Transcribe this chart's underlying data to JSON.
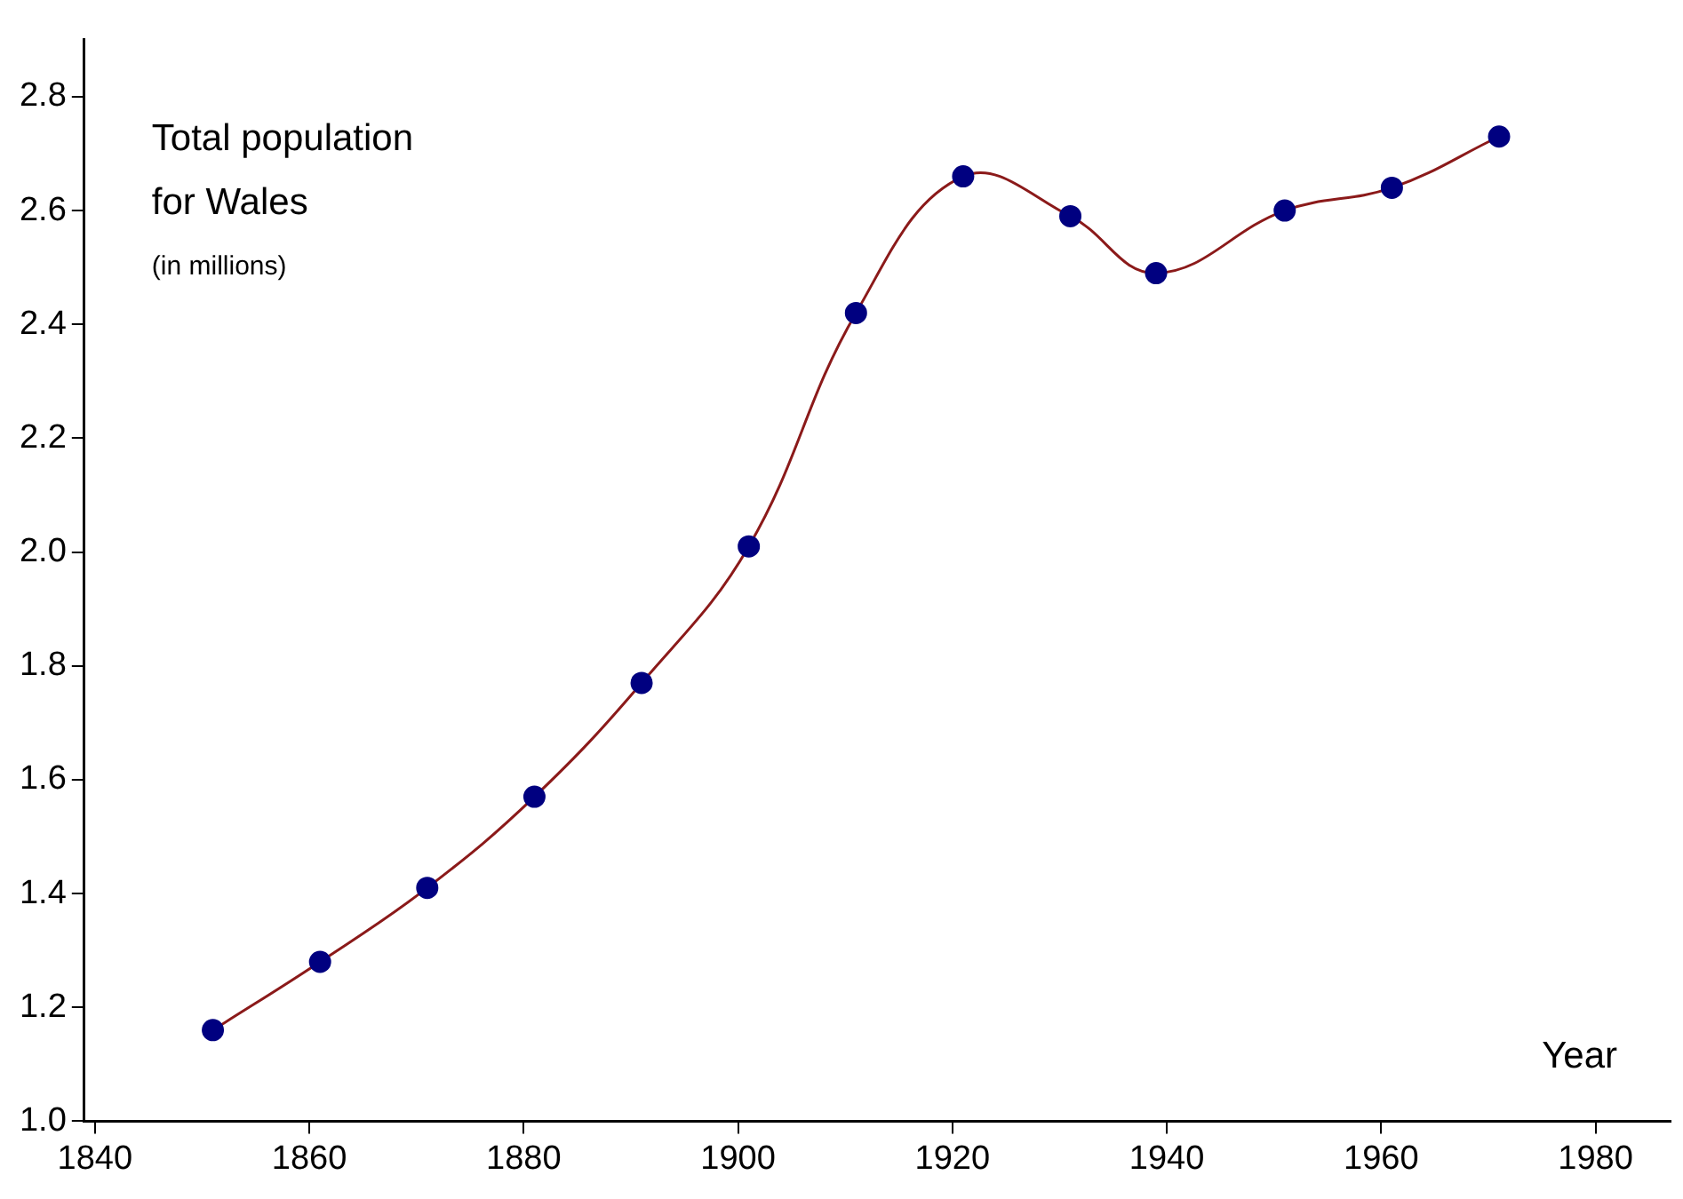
{
  "chart_data": {
    "type": "line",
    "title": "Total population for Wales",
    "subtitle": "(in millions)",
    "xlabel": "Year",
    "x": [
      1851,
      1861,
      1871,
      1881,
      1891,
      1901,
      1911,
      1921,
      1931,
      1939,
      1951,
      1961,
      1971
    ],
    "series": [
      {
        "color": "#8b1a1a",
        "colors": [
          "#000080",
          "#000080",
          "#000080",
          "#000080",
          "#000080",
          "#000080",
          "#000080",
          "#000080",
          "#000080",
          "#000080",
          "#000080",
          "#000080",
          "#000080"
        ],
        "values": [
          1.16,
          1.28,
          1.41,
          1.57,
          1.77,
          2.01,
          2.42,
          2.66,
          2.59,
          2.49,
          2.6,
          2.64,
          2.73
        ]
      }
    ],
    "marker": "circle",
    "line_style": "solid",
    "grid": false,
    "legend": false,
    "xlim": [
      1839,
      1987
    ],
    "xticks": [
      1840,
      1860,
      1880,
      1900,
      1920,
      1940,
      1960,
      1980
    ],
    "ylim": [
      1.0,
      2.9
    ],
    "yticks": [
      {
        "value": 1.0,
        "label": "1.0"
      },
      1.2,
      1.4,
      1.6,
      1.8,
      {
        "value": 2.0,
        "label": "2.0"
      },
      2.2,
      2.4,
      2.6,
      2.8
    ]
  }
}
